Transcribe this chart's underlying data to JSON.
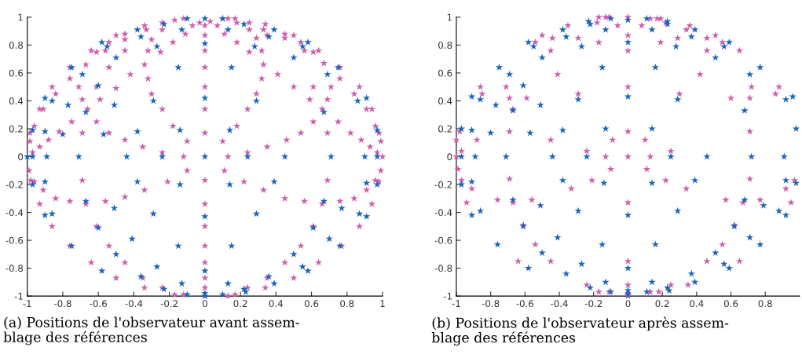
{
  "chart_data": [
    {
      "type": "scatter",
      "title": "(a) Positions de l'observateur avant assem-\nblage des références",
      "marker": "star",
      "grid": false,
      "legend": false,
      "xlim": [
        -1,
        1
      ],
      "ylim": [
        -1,
        1
      ],
      "xticks": [
        -1,
        -0.8,
        -0.6,
        -0.4,
        -0.2,
        0,
        0.2,
        0.4,
        0.6,
        0.8,
        1
      ],
      "yticks": [
        -1,
        -0.8,
        -0.6,
        -0.4,
        -0.2,
        0,
        0.2,
        0.4,
        0.6,
        0.8,
        1
      ],
      "series": [
        {
          "color": "#cc5fae",
          "x": [
            -0.985,
            -0.96,
            -0.985,
            -0.88,
            -0.93,
            -0.97,
            -0.93,
            -0.91,
            -0.86,
            -0.84,
            -0.82,
            -0.76,
            -0.76,
            -0.75,
            -0.71,
            -0.69,
            -0.69,
            -0.67,
            -0.66,
            -0.64,
            -0.61,
            -0.61,
            -0.61,
            -0.59,
            -0.56,
            -0.54,
            -0.54,
            -0.54,
            -0.5,
            -0.5,
            -0.45,
            -0.45,
            -0.45,
            -0.45,
            -0.42,
            -0.35,
            -0.34,
            -0.33,
            -0.34,
            -0.32,
            -0.32,
            -0.3,
            -0.3,
            -0.25,
            -0.24,
            -0.24,
            -0.24,
            -0.24,
            -0.18,
            -0.17,
            -0.18,
            -0.12,
            -0.12,
            -0.11,
            -0.1,
            -0.07,
            -0.03,
            0,
            0,
            0,
            0,
            0,
            0,
            0,
            0,
            0,
            0,
            0,
            0,
            0,
            0,
            0.03,
            0.07,
            0.1,
            0.13,
            0.11,
            0.17,
            0.18,
            0.18,
            0.25,
            0.25,
            0.29,
            0.34,
            0.33,
            0.35,
            0.45,
            0.45,
            0.5,
            0.54,
            0.56,
            0.61,
            0.64,
            0.67,
            0.76,
            0.76,
            0.87,
            0.84,
            0.91,
            0.94,
            0.96,
            0.98,
            0.88,
            0.99,
            0.93,
            0.97,
            1.0,
            0.25,
            0.32,
            0.33,
            0.41,
            0.32,
            0.5,
            0.61,
            0.71,
            0.29,
            0.59,
            0.69,
            0.24,
            0.66,
            0.18,
            0.61,
            0.75,
            0.54,
            0.69,
            0.82,
            0.46,
            0.1,
            0.35,
            0.24,
            0.13,
            -0.99,
            -0.98,
            -0.96,
            -0.91,
            -0.93,
            -0.84,
            -0.76,
            -0.67,
            -0.69,
            -0.86,
            -0.61,
            -0.56,
            -0.45,
            -0.34,
            -0.21,
            -0.1,
            -0.76,
            -0.54,
            -0.64,
            -0.45,
            -0.5,
            -0.35,
            -0.34,
            -0.24,
            -0.17,
            -0.12,
            0.11,
            0.22,
            0.13,
            0.17,
            0.24,
            0.34,
            0.35,
            0.5,
            0.45,
            0.64,
            0.54,
            0.77,
            0.61,
            0.87,
            0.33,
            0.45,
            0.56,
            0.66,
            0.76,
            0.84,
            0.94,
            0.69,
            0.91,
            0.96,
            0.98,
            0.99
          ],
          "values": [
            0.17,
            0.22,
            0.11,
            0.12,
            0.07,
            0.03,
            0.34,
            0.34,
            0.5,
            0.45,
            0.18,
            0.56,
            0.64,
            0.25,
            0.5,
            0.41,
            0.17,
            0.66,
            0.34,
            0.76,
            0.75,
            0.5,
            0.25,
            0.41,
            0.76,
            0.82,
            0.17,
            0.64,
            0.49,
            0.87,
            0.88,
            0.84,
            0.76,
            0.12,
            0.59,
            0.07,
            0.94,
            0.91,
            0.66,
            0.76,
            0.56,
            0.45,
            0.84,
            0.75,
            0.34,
            0.03,
            0.96,
            0.91,
            0.82,
            0.98,
            0.22,
            0.0,
            0.99,
            0.88,
            0.11,
            0.94,
            0.96,
            0.94,
            0.87,
            0.76,
            0.64,
            0.5,
            0.34,
            0.17,
            -0.17,
            -0.34,
            -0.5,
            -0.64,
            -0.76,
            -0.87,
            -0.94,
            0.97,
            0.94,
            0.99,
            0.99,
            0.88,
            0.99,
            0.96,
            0.82,
            0.96,
            0.91,
            0.85,
            0.95,
            0.91,
            0.87,
            0.88,
            0.85,
            0.87,
            0.82,
            0.76,
            0.75,
            0.76,
            0.67,
            0.64,
            0.56,
            0.5,
            0.45,
            0.34,
            0.34,
            0.22,
            0.17,
            0.12,
            0.11,
            0.07,
            0.03,
            0.0,
            0.75,
            0.76,
            0.66,
            0.59,
            0.56,
            0.5,
            0.5,
            0.5,
            0.45,
            0.41,
            0.41,
            0.34,
            0.34,
            0.22,
            0.25,
            0.25,
            0.17,
            0.17,
            0.17,
            0.12,
            0.11,
            0.07,
            0.03,
            0.0,
            -0.1,
            -0.17,
            -0.18,
            -0.24,
            -0.34,
            -0.3,
            -0.32,
            -0.34,
            -0.17,
            -0.5,
            -0.5,
            -0.32,
            -0.29,
            -0.24,
            -0.18,
            -0.1,
            -0.64,
            -0.64,
            -0.76,
            -0.76,
            -0.87,
            -0.87,
            -0.94,
            -0.94,
            -0.99,
            -0.99,
            -0.1,
            -0.18,
            -1.0,
            -0.99,
            -0.94,
            -0.94,
            -0.87,
            -0.87,
            -0.76,
            -0.76,
            -0.64,
            -0.64,
            -0.5,
            -0.5,
            -0.24,
            -0.3,
            -0.32,
            -0.34,
            -0.32,
            -0.3,
            -0.34,
            -0.17,
            -0.24,
            -0.17,
            -0.18,
            -0.1
          ]
        },
        {
          "color": "#1a64bc",
          "x": [
            -0.97,
            -0.9,
            -0.9,
            -0.86,
            -0.8,
            -0.77,
            -0.75,
            -0.69,
            -0.67,
            -0.6,
            -0.58,
            -0.55,
            -0.57,
            -0.51,
            -0.5,
            -0.38,
            -0.38,
            -0.36,
            -0.29,
            -0.27,
            -0.23,
            -0.15,
            -0.14,
            -0.13,
            -0.1,
            -1.0,
            -0.97,
            -0.89,
            -0.71,
            -0.44,
            -0.24,
            0,
            0.24,
            0.45,
            0.71,
            0.9,
            0.97,
            0,
            0,
            0,
            0,
            0,
            0,
            0,
            0.1,
            0.22,
            0.13,
            0.39,
            0.36,
            0.28,
            0.58,
            0.55,
            0.5,
            0.15,
            0.75,
            0.69,
            0.91,
            0.86,
            0.29,
            0.67,
            0.14,
            0.97,
            -0.97,
            -0.9,
            -0.9,
            -0.86,
            -0.67,
            -0.51,
            -0.6,
            -0.75,
            -0.41,
            -0.38,
            -0.29,
            -0.14,
            -0.15,
            -0.5,
            -0.58,
            -0.27,
            -0.36,
            -0.23,
            -0.13,
            -0.1,
            0.14,
            0.29,
            0.39,
            0.67,
            0.77,
            0.87,
            0.91,
            0.91,
            0.97,
            0.61,
            0.7,
            0.76,
            0.15,
            0.5,
            0.55,
            0.58,
            0.36,
            0.39,
            0.13,
            0.22,
            0.23,
            0.1
          ],
          "values": [
            0.19,
            0.18,
            0.42,
            0.4,
            0.16,
            0.37,
            0.64,
            0.59,
            0.32,
            0.51,
            0.82,
            0.79,
            0.16,
            0.37,
            0.71,
            0.18,
            0.91,
            0.86,
            0.4,
            0.79,
            0.95,
            0.64,
            0.19,
            0.91,
            0.99,
            0,
            0,
            0,
            0,
            0,
            0,
            0,
            0,
            0,
            0,
            0,
            0,
            0.99,
            0.81,
            0.42,
            -0.43,
            -0.82,
            -0.98,
            -1.0,
            0.99,
            0.95,
            0.91,
            0.91,
            0.86,
            0.79,
            0.82,
            0.79,
            0.71,
            0.64,
            0.64,
            0.59,
            0.42,
            0.4,
            0.4,
            0.32,
            0.19,
            0.19,
            -0.2,
            -0.18,
            -0.42,
            -0.41,
            -0.32,
            -0.37,
            -0.51,
            -0.64,
            -0.59,
            -0.18,
            -0.41,
            -0.2,
            -0.64,
            -0.7,
            -0.82,
            -0.79,
            -0.86,
            -0.95,
            -0.91,
            -0.99,
            -0.2,
            -0.41,
            -0.18,
            -0.32,
            -0.37,
            -0.41,
            -0.43,
            -0.19,
            -0.2,
            -0.51,
            -0.59,
            -0.64,
            -0.64,
            -0.7,
            -0.79,
            -0.82,
            -0.86,
            -0.91,
            -0.91,
            -0.95,
            -0.97,
            -0.99
          ]
        }
      ]
    },
    {
      "type": "scatter",
      "title": "(b) Positions de l'observateur après assem-\nblage des références",
      "marker": "star",
      "grid": false,
      "legend": false,
      "xlim": [
        -1,
        1
      ],
      "ylim": [
        -1,
        1
      ],
      "xticks": [
        -1,
        -0.8,
        -0.6,
        -0.4,
        -0.2,
        0,
        0.2,
        0.4,
        0.6,
        0.8
      ],
      "yticks": [
        -1,
        -0.8,
        -0.6,
        -0.4,
        -0.2,
        0,
        0.2,
        0.4,
        0.6,
        0.8,
        1
      ],
      "series": [
        {
          "color": "#cc5fae",
          "x": [
            -1.0,
            -0.98,
            -0.97,
            -1.0,
            -0.88,
            -0.86,
            -0.85,
            -0.71,
            -0.69,
            -0.69,
            -0.67,
            -0.59,
            -0.54,
            -0.5,
            -0.45,
            -0.44,
            -0.45,
            -0.41,
            -0.35,
            -0.29,
            -0.29,
            -0.24,
            -0.18,
            -0.17,
            -0.17,
            -0.13,
            -0.11,
            -0.13,
            -0.09,
            -0.06,
            0,
            0,
            0,
            0,
            0,
            0,
            0.08,
            0.1,
            0.13,
            0.13,
            0.17,
            0.19,
            0.22,
            0.19,
            0.25,
            0.29,
            0.3,
            0.34,
            0.36,
            0.42,
            0.46,
            0.46,
            0.51,
            0.55,
            0.6,
            0.65,
            0.71,
            0.71,
            0.72,
            0.86,
            0.88,
            -0.99,
            -0.97,
            -0.91,
            -0.94,
            -0.76,
            -0.69,
            -0.67,
            -0.61,
            -0.56,
            -0.54,
            -0.64,
            -0.45,
            -0.33,
            -0.21,
            -0.24,
            -0.17,
            -0.11,
            -0.1,
            0,
            0,
            0,
            0,
            0,
            0.11,
            0.13,
            0.18,
            0.22,
            0.25,
            0.34,
            0.35,
            0.46,
            0.55,
            0.57,
            0.62,
            0.65,
            0.67,
            0.71,
            0.77,
            0.92,
            0.95,
            0.97
          ],
          "values": [
            0.12,
            0.18,
            0.04,
            0.0,
            0.12,
            0.5,
            0.45,
            0.5,
            0.42,
            0.18,
            0.34,
            0.42,
            0.82,
            0.87,
            0.76,
            0.85,
            0.12,
            0.59,
            0.94,
            0.85,
            0.45,
            0.04,
            0.96,
            1.0,
            0.82,
            1.0,
            1.0,
            0.0,
            0.12,
            0.94,
            1.0,
            0.87,
            0.76,
            0.5,
            0.18,
            0.0,
            0.94,
            0.12,
            0.0,
            0.99,
            0.99,
            0.99,
            0.96,
            0.82,
            0.04,
            0.85,
            0.45,
            0.91,
            0.94,
            0.59,
            0.85,
            0.76,
            0.87,
            0.82,
            0.42,
            0.76,
            0.18,
            0.42,
            0.5,
            0.45,
            0.5,
            -0.09,
            -0.17,
            -0.23,
            -0.33,
            -0.31,
            -0.16,
            -0.33,
            -0.49,
            -0.31,
            -0.63,
            -0.75,
            -0.75,
            -0.23,
            -0.17,
            -0.92,
            -0.97,
            -0.97,
            -0.09,
            -0.33,
            -0.75,
            -0.92,
            -0.98,
            -1.0,
            -0.09,
            -0.97,
            -0.97,
            -0.17,
            -0.92,
            -0.23,
            -0.92,
            -0.75,
            -0.63,
            -0.31,
            -0.49,
            -0.75,
            -0.33,
            -0.16,
            -0.31,
            -0.23,
            -0.33,
            -0.17
          ]
        },
        {
          "color": "#1a64bc",
          "x": [
            -0.97,
            -0.91,
            -0.91,
            -0.86,
            -0.8,
            -0.77,
            -0.75,
            -0.69,
            -0.67,
            -0.61,
            -0.58,
            -0.55,
            -0.57,
            -0.51,
            -0.5,
            -0.38,
            -0.36,
            -0.38,
            -0.27,
            -0.29,
            -0.23,
            -0.22,
            -0.15,
            -0.13,
            -0.13,
            -0.1,
            0,
            0,
            0,
            0.11,
            0.14,
            0.16,
            0.14,
            0.23,
            0.23,
            0.28,
            0.29,
            0.37,
            0.39,
            0.51,
            0.56,
            0.59,
            0.68,
            0.71,
            0.77,
            0.92,
            0.96,
            0.98,
            -0.97,
            -0.89,
            -0.71,
            -0.44,
            -0.24,
            0.25,
            0.46,
            0.72,
            0.91,
            -0.97,
            -0.91,
            -0.91,
            -0.86,
            -0.76,
            -0.67,
            -0.61,
            -0.58,
            -0.51,
            -0.5,
            -0.41,
            -0.38,
            -0.36,
            -0.29,
            -0.27,
            -0.22,
            -0.15,
            -0.14,
            -0.13,
            -0.1,
            0,
            0,
            0,
            0,
            0.11,
            0.14,
            0.14,
            0.16,
            0.23,
            0.24,
            0.29,
            0.37,
            0.39,
            0.39,
            0.51,
            0.56,
            0.59,
            0.62,
            0.68,
            0.71,
            0.77,
            0.79,
            0.88,
            0.92,
            0.92,
            0.98
          ],
          "values": [
            0.2,
            0.19,
            0.43,
            0.41,
            0.17,
            0.37,
            0.64,
            0.59,
            0.33,
            0.51,
            0.82,
            0.79,
            0.17,
            0.37,
            0.71,
            0.91,
            0.86,
            0.19,
            0.79,
            0.41,
            0.97,
            0.95,
            0.64,
            0.91,
            0.2,
            0.99,
            0.98,
            0.82,
            0.43,
            0.99,
            0.91,
            0.64,
            0.2,
            0.97,
            0.95,
            0.79,
            0.41,
            0.86,
            0.91,
            0.71,
            0.79,
            0.82,
            0.33,
            0.59,
            0.64,
            0.41,
            0.43,
            0.2,
            0,
            0,
            0,
            0,
            0,
            0,
            0,
            0,
            0,
            -0.2,
            -0.18,
            -0.42,
            -0.39,
            -0.63,
            -0.31,
            -0.5,
            -0.8,
            -0.35,
            -0.69,
            -0.58,
            -0.17,
            -0.84,
            -0.39,
            -0.77,
            -0.94,
            -0.63,
            -0.19,
            -0.9,
            -0.97,
            -0.42,
            -0.8,
            -0.96,
            -0.99,
            -0.97,
            -0.9,
            -0.19,
            -0.63,
            -0.94,
            -0.96,
            -0.39,
            -0.84,
            -0.17,
            -0.9,
            -0.69,
            -0.77,
            -0.8,
            -0.5,
            -0.31,
            -0.58,
            -0.63,
            -0.35,
            -0.39,
            -0.42,
            -0.17,
            -0.19
          ]
        }
      ]
    }
  ]
}
